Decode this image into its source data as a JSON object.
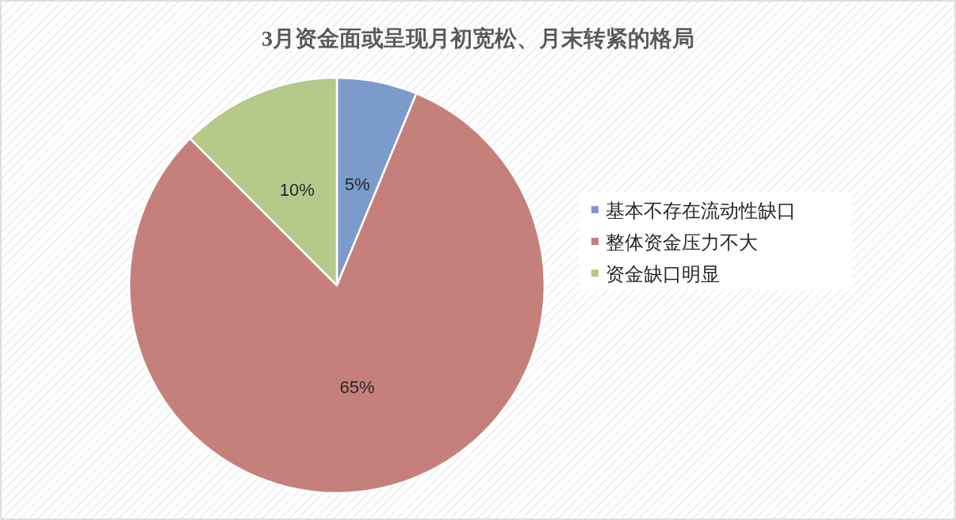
{
  "chart_data": {
    "type": "pie",
    "title": "3月资金面或呈现月初宽松、月末转紧的格局",
    "categories": [
      "基本不存在流动性缺口",
      "整体资金压力不大",
      "资金缺口明显"
    ],
    "values": [
      5,
      65,
      10
    ],
    "colors": [
      "#7b9bcb",
      "#c6807c",
      "#b4c98a"
    ],
    "value_labels": [
      "5%",
      "65%",
      "10%"
    ],
    "legend": "right"
  }
}
